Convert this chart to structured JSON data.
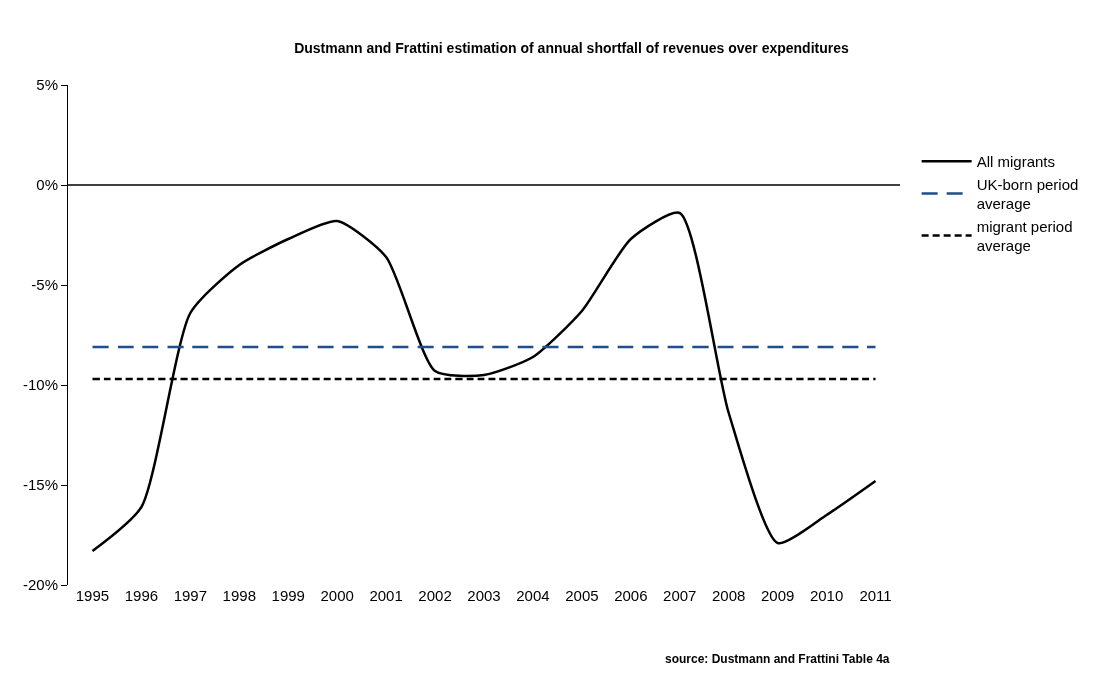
{
  "chart_data": {
    "type": "line",
    "title": "Dustmann and Frattini estimation of annual shortfall of revenues over expenditures",
    "categories": [
      "1995",
      "1996",
      "1997",
      "1998",
      "1999",
      "2000",
      "2001",
      "2002",
      "2003",
      "2004",
      "2005",
      "2006",
      "2007",
      "2008",
      "2009",
      "2010",
      "2011"
    ],
    "series": [
      {
        "name": "All migrants",
        "color": "#000000",
        "line_style": "solid",
        "values": [
          -18.3,
          -16.1,
          -6.4,
          -4.0,
          -2.7,
          -1.8,
          -3.6,
          -9.3,
          -9.5,
          -8.6,
          -6.3,
          -2.7,
          -1.4,
          -11.4,
          -17.9,
          -16.5,
          -14.8
        ]
      },
      {
        "name": "UK-born period average",
        "color": "#1f4e8c",
        "line_style": "dashed",
        "values": [
          -8.1,
          -8.1,
          -8.1,
          -8.1,
          -8.1,
          -8.1,
          -8.1,
          -8.1,
          -8.1,
          -8.1,
          -8.1,
          -8.1,
          -8.1,
          -8.1,
          -8.1,
          -8.1,
          -8.1
        ]
      },
      {
        "name": "migrant period average",
        "color": "#000000",
        "line_style": "dotted",
        "values": [
          -9.7,
          -9.7,
          -9.7,
          -9.7,
          -9.7,
          -9.7,
          -9.7,
          -9.7,
          -9.7,
          -9.7,
          -9.7,
          -9.7,
          -9.7,
          -9.7,
          -9.7,
          -9.7,
          -9.7
        ]
      }
    ],
    "ylim": [
      -20,
      5
    ],
    "yticks": [
      {
        "value": -20,
        "label": "-20%"
      },
      {
        "value": -15,
        "label": "-15%"
      },
      {
        "value": -10,
        "label": "-10%"
      },
      {
        "value": -5,
        "label": "-5%"
      },
      {
        "value": 0,
        "label": "0%"
      },
      {
        "value": 5,
        "label": "5%"
      }
    ],
    "ref_lines": [
      {
        "axis": "y",
        "value": 0,
        "color": "#000000"
      }
    ],
    "legend": "right",
    "marker": "none",
    "annotations": [
      "source: Dustmann and Frattini Table 4a"
    ]
  }
}
